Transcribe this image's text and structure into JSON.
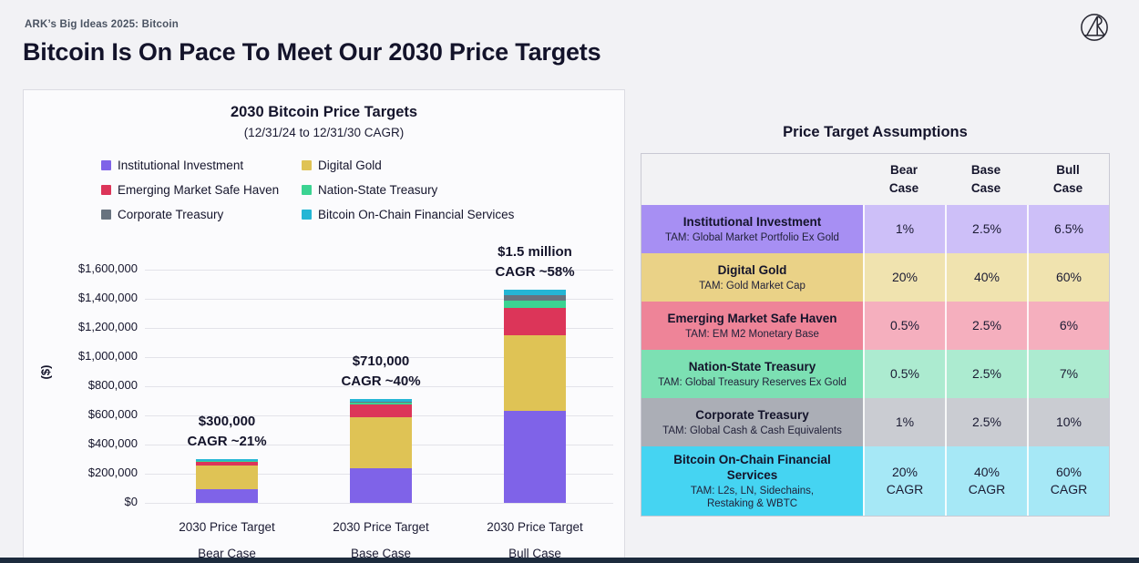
{
  "page": {
    "breadcrumb": "ARK’s Big Ideas 2025: Bitcoin",
    "title": "Bitcoin Is On Pace To Meet Our 2030 Price Targets",
    "colors": {
      "background": "#F2F2F5",
      "panel": "#FBFBFD",
      "text": "#16162C",
      "muted_text": "#4A5362",
      "gridline": "#E3E3E9",
      "footer_bar": "#1D2B3D"
    }
  },
  "chart_data": {
    "type": "stacked-bar",
    "title": "2030 Bitcoin Price Targets",
    "subtitle": "(12/31/24 to 12/31/30 CAGR)",
    "ylabel": "($)",
    "ylim": [
      0,
      1600000
    ],
    "ytick_step": 200000,
    "yticks": [
      "$1,600,000",
      "$1,400,000",
      "$1,200,000",
      "$1,000,000",
      "$800,000",
      "$600,000",
      "$400,000",
      "$200,000",
      "$0"
    ],
    "grid": "horizontal",
    "legend_position": "top",
    "categories": [
      {
        "line1": "2030 Price Target",
        "line2": "Bear Case"
      },
      {
        "line1": "2030 Price Target",
        "line2": "Base Case"
      },
      {
        "line1": "2030 Price Target",
        "line2": "Bull Case"
      }
    ],
    "series": [
      {
        "name": "Institutional Investment",
        "color": "#7F63E8",
        "values": [
          95000,
          240000,
          630000
        ]
      },
      {
        "name": "Digital Gold",
        "color": "#DFC355",
        "values": [
          163000,
          350000,
          520000
        ]
      },
      {
        "name": "Emerging Market Safe Haven",
        "color": "#DC3559",
        "values": [
          22000,
          85000,
          190000
        ]
      },
      {
        "name": "Nation-State Treasury",
        "color": "#3BD392",
        "values": [
          6000,
          14000,
          50000
        ]
      },
      {
        "name": "Corporate Treasury",
        "color": "#68737F",
        "values": [
          4000,
          4000,
          38000
        ]
      },
      {
        "name": "Bitcoin On-Chain Financial Services",
        "color": "#24B6D5",
        "values": [
          10000,
          17000,
          32000
        ]
      }
    ],
    "bar_totals_approx": [
      300000,
      710000,
      1460000
    ],
    "annotations": [
      {
        "line1": "$300,000",
        "line2": "CAGR ~21%"
      },
      {
        "line1": "$710,000",
        "line2": "CAGR ~40%"
      },
      {
        "line1": "$1.5 million",
        "line2": "CAGR ~58%"
      }
    ]
  },
  "assumptions_table": {
    "title": "Price Target Assumptions",
    "column_headers": [
      "Bear\nCase",
      "Base\nCase",
      "Bull\nCase"
    ],
    "rows": [
      {
        "name": "Institutional Investment",
        "tam": "TAM: Global Market Portfolio Ex Gold",
        "label_bg": "#A78FF3",
        "cell_bg": "#CDBFF8",
        "values": [
          "1%",
          "2.5%",
          "6.5%"
        ]
      },
      {
        "name": "Digital Gold",
        "tam": "TAM: Gold Market Cap",
        "label_bg": "#EAD287",
        "cell_bg": "#F0E3AF",
        "values": [
          "20%",
          "40%",
          "60%"
        ]
      },
      {
        "name": "Emerging Market Safe Haven",
        "tam": "TAM: EM M2 Monetary Base",
        "label_bg": "#EE8498",
        "cell_bg": "#F5AFBE",
        "values": [
          "0.5%",
          "2.5%",
          "6%"
        ]
      },
      {
        "name": "Nation-State Treasury",
        "tam": "TAM: Global Treasury Reserves Ex Gold",
        "label_bg": "#7CE0B3",
        "cell_bg": "#ACEBD0",
        "values": [
          "0.5%",
          "2.5%",
          "7%"
        ]
      },
      {
        "name": "Corporate Treasury",
        "tam": "TAM: Global Cash & Cash Equivalents",
        "label_bg": "#ABAEB6",
        "cell_bg": "#CACCD2",
        "values": [
          "1%",
          "2.5%",
          "10%"
        ]
      },
      {
        "name": "Bitcoin On-Chain Financial Services",
        "tam": "TAM: L2s, LN, Sidechains,\nRestaking & WBTC",
        "label_bg": "#45D4F2",
        "cell_bg": "#A6E8F6",
        "values": [
          "20%\nCAGR",
          "40%\nCAGR",
          "60%\nCAGR"
        ]
      }
    ]
  }
}
